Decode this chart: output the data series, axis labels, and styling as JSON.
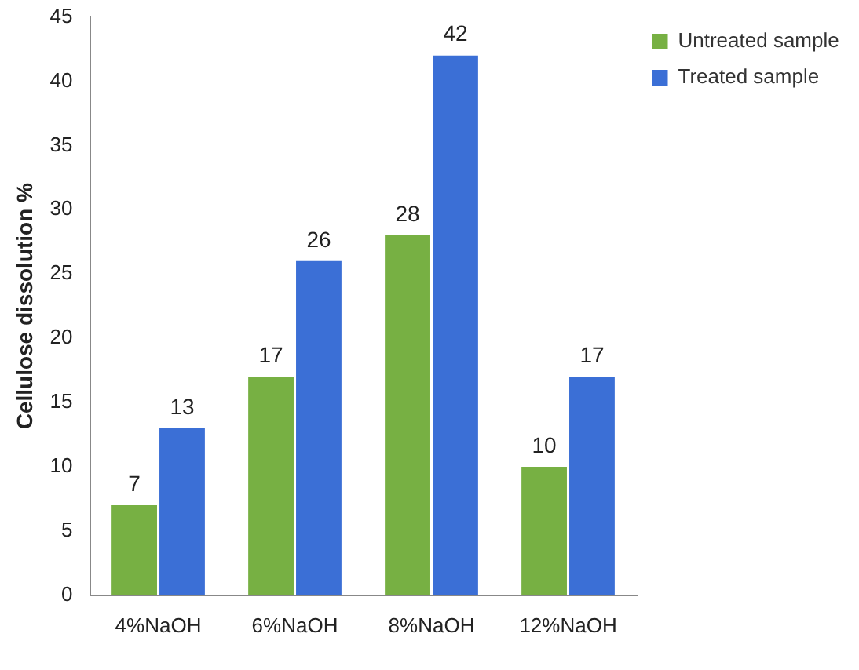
{
  "chart_data": {
    "type": "bar",
    "ylabel": "Cellulose dissolution %",
    "categories": [
      "4%NaOH",
      "6%NaOH",
      "8%NaOH",
      "12%NaOH"
    ],
    "series": [
      {
        "name": "Untreated sample",
        "color": "#77b043",
        "values": [
          7,
          17,
          28,
          10
        ]
      },
      {
        "name": "Treated sample",
        "color": "#3b6fd6",
        "values": [
          13,
          26,
          42,
          17
        ]
      }
    ],
    "ylim": [
      0,
      45
    ],
    "yticks": [
      0,
      5,
      10,
      15,
      20,
      25,
      30,
      35,
      40,
      45
    ],
    "grid": false,
    "legend": "top right",
    "data_labels": true
  }
}
